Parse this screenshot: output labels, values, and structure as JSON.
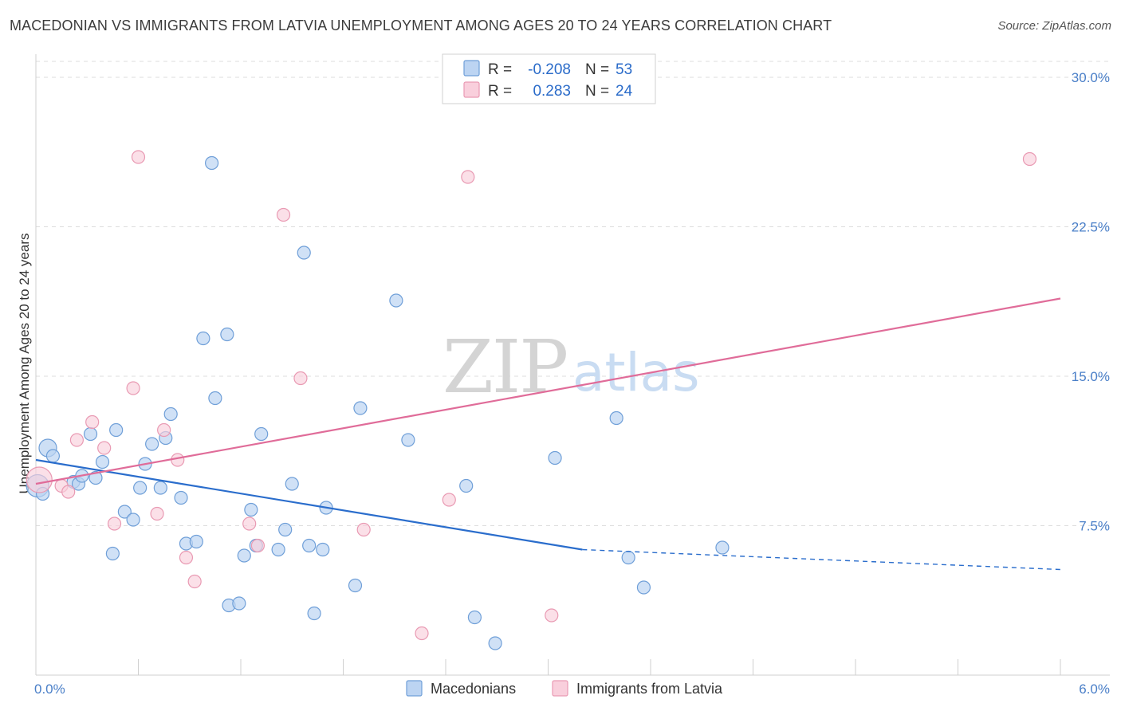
{
  "header": {
    "title": "MACEDONIAN VS IMMIGRANTS FROM LATVIA UNEMPLOYMENT AMONG AGES 20 TO 24 YEARS CORRELATION CHART",
    "source": "Source: ZipAtlas.com"
  },
  "watermark": {
    "zip": "ZIP",
    "atlas": "atlas"
  },
  "colors": {
    "macedonians_fill": "#bcd4f2",
    "macedonians_stroke": "#6f9fd8",
    "macedonians_line": "#2a6dcc",
    "latvia_fill": "#f9cfdc",
    "latvia_stroke": "#e99ab3",
    "latvia_line": "#e06c99",
    "axis_label": "#4a7fc8",
    "grid": "#dddddd"
  },
  "legend": {
    "rows": [
      {
        "r_label": "R =",
        "r_value": "-0.208",
        "n_label": "N =",
        "n_value": "53"
      },
      {
        "r_label": "R =",
        "r_value": "0.283",
        "n_label": "N =",
        "n_value": "24"
      }
    ]
  },
  "chart_data": {
    "type": "scatter",
    "title": "MACEDONIAN VS IMMIGRANTS FROM LATVIA UNEMPLOYMENT AMONG AGES 20 TO 24 YEARS CORRELATION CHART",
    "xlabel": "",
    "ylabel": "Unemployment Among Ages 20 to 24 years",
    "xlim": [
      0,
      6
    ],
    "ylim": [
      0,
      30.8
    ],
    "x_tick_labels": [
      "0.0%",
      "6.0%"
    ],
    "y_ticks": [
      7.5,
      15.0,
      22.5,
      30.0
    ],
    "y_tick_labels": [
      "7.5%",
      "15.0%",
      "22.5%",
      "30.0%"
    ],
    "grid": true,
    "legend_position": "top-center",
    "series": [
      {
        "name": "Macedonians",
        "r": -0.208,
        "n": 53,
        "trend": {
          "x0": 0.0,
          "y0": 10.8,
          "x1": 3.2,
          "y1": 6.3,
          "dash_x1": 6.0,
          "dash_y1": 5.3
        },
        "points": [
          [
            0.01,
            9.5
          ],
          [
            0.07,
            11.4
          ],
          [
            0.1,
            11.0
          ],
          [
            0.22,
            9.7
          ],
          [
            0.25,
            9.6
          ],
          [
            0.27,
            10.0
          ],
          [
            0.32,
            12.1
          ],
          [
            0.35,
            9.9
          ],
          [
            0.39,
            10.7
          ],
          [
            0.47,
            12.3
          ],
          [
            0.52,
            8.2
          ],
          [
            0.57,
            7.8
          ],
          [
            0.45,
            6.1
          ],
          [
            0.61,
            9.4
          ],
          [
            0.64,
            10.6
          ],
          [
            0.68,
            11.6
          ],
          [
            0.73,
            9.4
          ],
          [
            0.76,
            11.9
          ],
          [
            0.79,
            13.1
          ],
          [
            0.85,
            8.9
          ],
          [
            0.88,
            6.6
          ],
          [
            0.94,
            6.7
          ],
          [
            0.98,
            16.9
          ],
          [
            1.03,
            25.7
          ],
          [
            1.05,
            13.9
          ],
          [
            1.12,
            17.1
          ],
          [
            1.13,
            3.5
          ],
          [
            1.19,
            3.6
          ],
          [
            1.22,
            6.0
          ],
          [
            1.26,
            8.3
          ],
          [
            1.29,
            6.5
          ],
          [
            1.32,
            12.1
          ],
          [
            1.42,
            6.3
          ],
          [
            1.46,
            7.3
          ],
          [
            1.5,
            9.6
          ],
          [
            1.57,
            21.2
          ],
          [
            1.6,
            6.5
          ],
          [
            1.63,
            3.1
          ],
          [
            1.68,
            6.3
          ],
          [
            1.7,
            8.4
          ],
          [
            1.87,
            4.5
          ],
          [
            1.9,
            13.4
          ],
          [
            2.11,
            18.8
          ],
          [
            2.18,
            11.8
          ],
          [
            2.52,
            9.5
          ],
          [
            2.57,
            2.9
          ],
          [
            2.69,
            1.6
          ],
          [
            3.04,
            10.9
          ],
          [
            3.4,
            12.9
          ],
          [
            3.47,
            5.9
          ],
          [
            3.56,
            4.4
          ],
          [
            4.02,
            6.4
          ],
          [
            0.04,
            9.1
          ]
        ]
      },
      {
        "name": "Immigrants from Latvia",
        "r": 0.283,
        "n": 24,
        "trend": {
          "x0": 0.0,
          "y0": 9.6,
          "x1": 6.0,
          "y1": 18.9
        },
        "points": [
          [
            0.02,
            9.8
          ],
          [
            0.15,
            9.5
          ],
          [
            0.19,
            9.2
          ],
          [
            0.24,
            11.8
          ],
          [
            0.33,
            12.7
          ],
          [
            0.4,
            11.4
          ],
          [
            0.46,
            7.6
          ],
          [
            0.57,
            14.4
          ],
          [
            0.6,
            26.0
          ],
          [
            0.71,
            8.1
          ],
          [
            0.75,
            12.3
          ],
          [
            0.83,
            10.8
          ],
          [
            0.88,
            5.9
          ],
          [
            0.93,
            4.7
          ],
          [
            1.25,
            7.6
          ],
          [
            1.3,
            6.5
          ],
          [
            1.45,
            23.1
          ],
          [
            1.55,
            14.9
          ],
          [
            1.92,
            7.3
          ],
          [
            2.26,
            2.1
          ],
          [
            2.42,
            8.8
          ],
          [
            2.53,
            25.0
          ],
          [
            3.02,
            3.0
          ],
          [
            5.82,
            25.9
          ]
        ]
      }
    ]
  },
  "bottom_legend": {
    "items": [
      {
        "label": "Macedonians"
      },
      {
        "label": "Immigrants from Latvia"
      }
    ]
  }
}
